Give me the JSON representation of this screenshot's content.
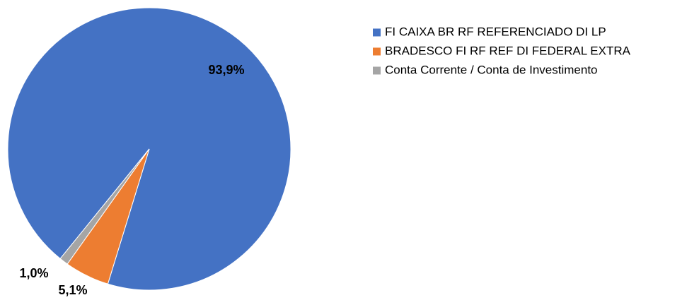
{
  "chart_data": {
    "type": "pie",
    "categories": [
      "FI CAIXA BR RF REFERENCIADO DI LP",
      "BRADESCO FI RF REF DI FEDERAL EXTRA",
      "Conta Corrente / Conta de Investimento"
    ],
    "values": [
      93.9,
      5.1,
      1.0
    ],
    "value_labels": [
      "93,9%",
      "5,1%",
      "1,0%"
    ],
    "colors": [
      "#4472c4",
      "#ed7d31",
      "#a5a5a5"
    ],
    "legend": "right"
  }
}
